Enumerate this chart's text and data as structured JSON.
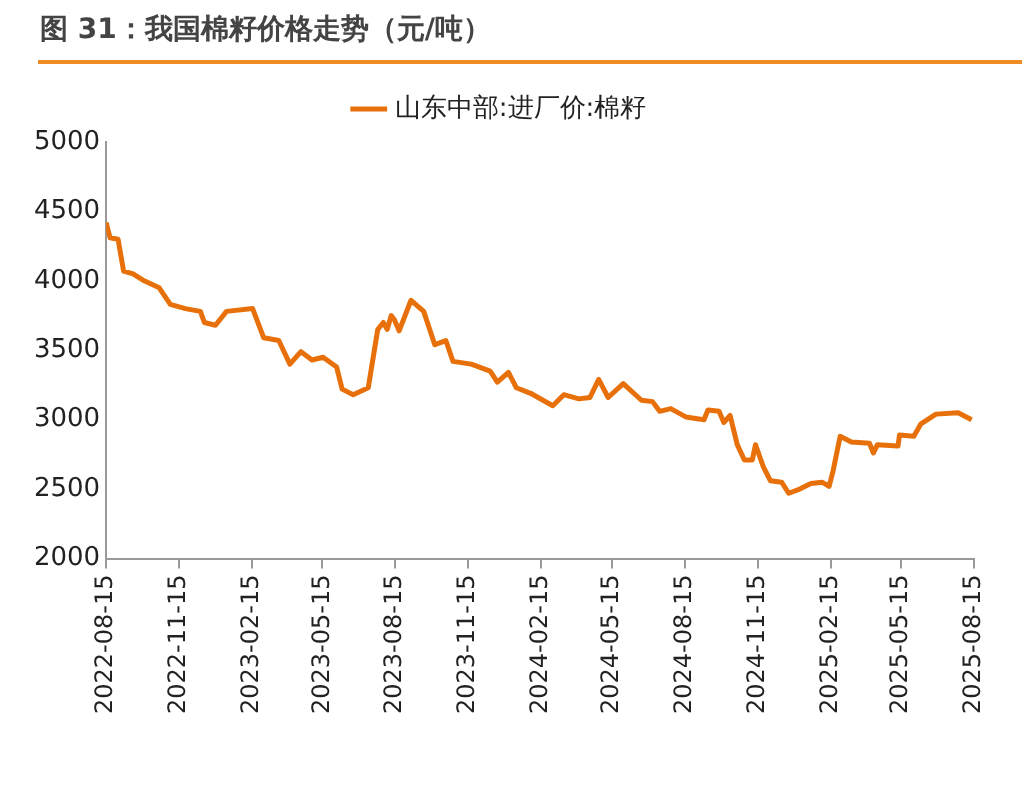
{
  "chart_data": {
    "type": "line",
    "title": "图 31：我国棉籽价格走势（元/吨）",
    "x": [
      "2022-08-15",
      "2022-08-20",
      "2022-08-30",
      "2022-09-06",
      "2022-09-18",
      "2022-10-02",
      "2022-10-21",
      "2022-11-04",
      "2022-11-23",
      "2022-12-12",
      "2022-12-17",
      "2022-12-31",
      "2023-01-14",
      "2023-02-16",
      "2023-03-02",
      "2023-03-21",
      "2023-04-04",
      "2023-04-18",
      "2023-05-02",
      "2023-05-16",
      "2023-06-02",
      "2023-06-09",
      "2023-06-23",
      "2023-07-12",
      "2023-07-24",
      "2023-07-31",
      "2023-08-05",
      "2023-08-10",
      "2023-08-14",
      "2023-08-20",
      "2023-09-04",
      "2023-09-20",
      "2023-10-04",
      "2023-10-18",
      "2023-10-27",
      "2023-11-19",
      "2023-12-13",
      "2023-12-22",
      "2024-01-05",
      "2024-01-15",
      "2024-02-02",
      "2024-03-01",
      "2024-03-15",
      "2024-04-03",
      "2024-04-17",
      "2024-04-28",
      "2024-05-10",
      "2024-05-29",
      "2024-06-21",
      "2024-07-05",
      "2024-07-14",
      "2024-07-28",
      "2024-08-16",
      "2024-09-08",
      "2024-09-13",
      "2024-09-27",
      "2024-10-03",
      "2024-10-11",
      "2024-10-20",
      "2024-10-29",
      "2024-11-08",
      "2024-11-12",
      "2024-11-22",
      "2024-12-01",
      "2024-12-15",
      "2024-12-24",
      "2025-01-07",
      "2025-01-21",
      "2025-02-04",
      "2025-02-13",
      "2025-02-18",
      "2025-02-27",
      "2025-03-13",
      "2025-04-05",
      "2025-04-10",
      "2025-04-15",
      "2025-05-11",
      "2025-05-13",
      "2025-05-31",
      "2025-06-09",
      "2025-06-28",
      "2025-07-26",
      "2025-08-12"
    ],
    "series": [
      {
        "name": "山东中部:进厂价:棉籽",
        "color": "#e8700a",
        "values": [
          4420,
          4310,
          4300,
          4070,
          4050,
          4000,
          3950,
          3830,
          3800,
          3780,
          3700,
          3680,
          3780,
          3800,
          3590,
          3570,
          3400,
          3490,
          3430,
          3450,
          3380,
          3220,
          3180,
          3230,
          3650,
          3700,
          3650,
          3750,
          3720,
          3640,
          3860,
          3780,
          3540,
          3570,
          3420,
          3400,
          3350,
          3270,
          3340,
          3230,
          3190,
          3100,
          3180,
          3150,
          3160,
          3290,
          3160,
          3260,
          3140,
          3130,
          3060,
          3080,
          3020,
          3000,
          3070,
          3060,
          2980,
          3030,
          2820,
          2710,
          2710,
          2820,
          2660,
          2560,
          2550,
          2470,
          2500,
          2540,
          2550,
          2520,
          2630,
          2880,
          2840,
          2830,
          2760,
          2820,
          2810,
          2890,
          2880,
          2970,
          3040,
          3050,
          3000
        ]
      }
    ],
    "ylim": [
      2000,
      5000
    ],
    "yticks": [
      2000,
      2500,
      3000,
      3500,
      4000,
      4500,
      5000
    ],
    "xlim": [
      "2022-08-15",
      "2025-08-15"
    ],
    "xticks": [
      "2022-08-15",
      "2022-11-15",
      "2023-02-15",
      "2023-05-15",
      "2023-08-15",
      "2023-11-15",
      "2024-02-15",
      "2024-05-15",
      "2024-08-15",
      "2024-11-15",
      "2025-02-15",
      "2025-05-15",
      "2025-08-15"
    ],
    "grid": false,
    "legend": "top",
    "marker": "none",
    "line_style": "solid"
  }
}
